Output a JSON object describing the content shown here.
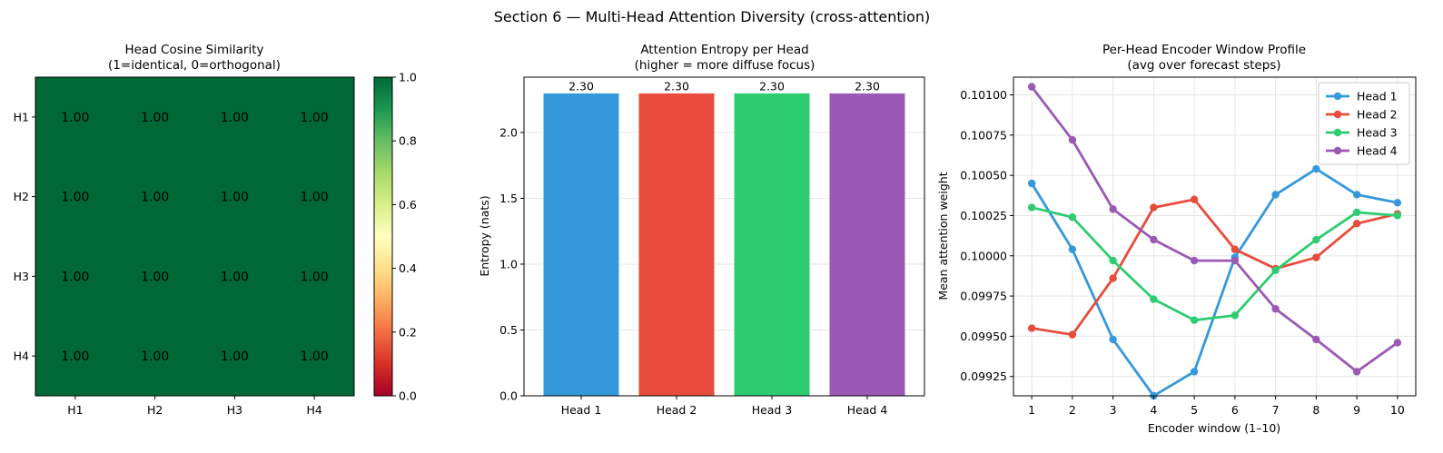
{
  "suptitle": "Section 6 — Multi-Head Attention Diversity (cross-attention)",
  "chart_data": [
    {
      "type": "heatmap",
      "title_line1": "Head Cosine Similarity",
      "title_line2": "(1=identical, 0=orthogonal)",
      "row_labels": [
        "H1",
        "H2",
        "H3",
        "H4"
      ],
      "col_labels": [
        "H1",
        "H2",
        "H3",
        "H4"
      ],
      "values": [
        [
          1.0,
          1.0,
          1.0,
          1.0
        ],
        [
          1.0,
          1.0,
          1.0,
          1.0
        ],
        [
          1.0,
          1.0,
          1.0,
          1.0
        ],
        [
          1.0,
          1.0,
          1.0,
          1.0
        ]
      ],
      "cell_labels": [
        [
          "1.00",
          "1.00",
          "1.00",
          "1.00"
        ],
        [
          "1.00",
          "1.00",
          "1.00",
          "1.00"
        ],
        [
          "1.00",
          "1.00",
          "1.00",
          "1.00"
        ],
        [
          "1.00",
          "1.00",
          "1.00",
          "1.00"
        ]
      ],
      "colormap": "RdYlGn",
      "vmin": 0.0,
      "vmax": 1.0,
      "colorbar_ticks": [
        "0.0",
        "0.2",
        "0.4",
        "0.6",
        "0.8",
        "1.0"
      ]
    },
    {
      "type": "bar",
      "title_line1": "Attention Entropy per Head",
      "title_line2": "(higher = more diffuse focus)",
      "ylabel": "Entropy (nats)",
      "categories": [
        "Head 1",
        "Head 2",
        "Head 3",
        "Head 4"
      ],
      "values": [
        2.3,
        2.3,
        2.3,
        2.3
      ],
      "data_labels": [
        "2.30",
        "2.30",
        "2.30",
        "2.30"
      ],
      "colors": [
        "#3498db",
        "#e74c3c",
        "#2ecc71",
        "#9b59b6"
      ],
      "ylim": [
        0,
        2.42
      ],
      "yticks": [
        "0.0",
        "0.5",
        "1.0",
        "1.5",
        "2.0"
      ],
      "grid": "y"
    },
    {
      "type": "line",
      "title_line1": "Per-Head Encoder Window Profile",
      "title_line2": "(avg over forecast steps)",
      "xlabel": "Encoder window (1–10)",
      "ylabel": "Mean attention weight",
      "x": [
        1,
        2,
        3,
        4,
        5,
        6,
        7,
        8,
        9,
        10
      ],
      "xticks": [
        "1",
        "2",
        "3",
        "4",
        "5",
        "6",
        "7",
        "8",
        "9",
        "10"
      ],
      "yticks": [
        "0.09925",
        "0.09950",
        "0.09975",
        "0.10000",
        "0.10025",
        "0.10050",
        "0.10075",
        "0.10100"
      ],
      "ylim": [
        0.09913,
        0.10111
      ],
      "grid": true,
      "legend_position": "top-right",
      "series": [
        {
          "name": "Head 1",
          "color": "#3498db",
          "values": [
            0.10045,
            0.10004,
            0.09948,
            0.09913,
            0.09928,
            0.09999,
            0.10038,
            0.10054,
            0.10038,
            0.10033
          ]
        },
        {
          "name": "Head 2",
          "color": "#e74c3c",
          "values": [
            0.09955,
            0.09951,
            0.09986,
            0.1003,
            0.10035,
            0.10004,
            0.09992,
            0.09999,
            0.1002,
            0.10026
          ]
        },
        {
          "name": "Head 3",
          "color": "#2ecc71",
          "values": [
            0.1003,
            0.10024,
            0.09997,
            0.09973,
            0.0996,
            0.09963,
            0.09991,
            0.1001,
            0.10027,
            0.10025
          ]
        },
        {
          "name": "Head 4",
          "color": "#9b59b6",
          "values": [
            0.10105,
            0.10072,
            0.10029,
            0.1001,
            0.09997,
            0.09997,
            0.09967,
            0.09948,
            0.09928,
            0.09946
          ]
        }
      ]
    }
  ]
}
